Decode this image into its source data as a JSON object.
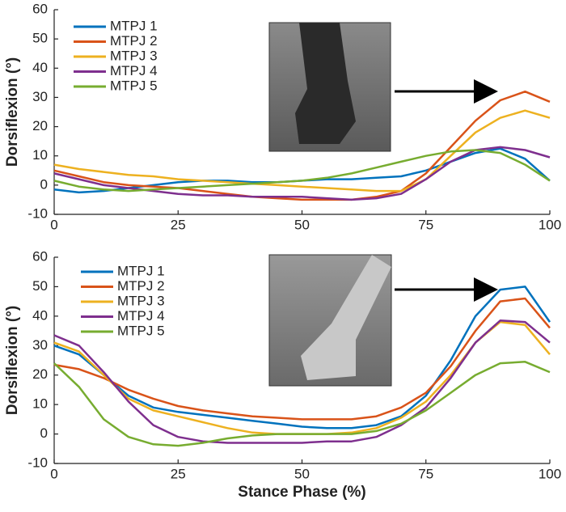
{
  "chart_data": [
    {
      "type": "line",
      "ylabel": "Dorsiflexion (°)",
      "x": [
        0,
        5,
        10,
        15,
        20,
        25,
        30,
        35,
        40,
        45,
        50,
        55,
        60,
        65,
        70,
        75,
        80,
        85,
        90,
        95,
        100
      ],
      "xlim": [
        0,
        100
      ],
      "xticks": [
        0,
        25,
        50,
        75,
        100
      ],
      "ylim": [
        -10,
        60
      ],
      "yticks": [
        -10,
        0,
        10,
        20,
        30,
        40,
        50,
        60
      ],
      "legend": "upper left",
      "series": [
        {
          "name": "MTPJ 1",
          "color": "#0072bd",
          "values": [
            -1.5,
            -2.5,
            -2,
            -1,
            0,
            1,
            1.5,
            1.5,
            1,
            1,
            1.5,
            2,
            2,
            2.5,
            3,
            5,
            8,
            11,
            12.5,
            9,
            1.5
          ]
        },
        {
          "name": "MTPJ 2",
          "color": "#d95319",
          "values": [
            5,
            3,
            1,
            0,
            -0.5,
            -1,
            -2,
            -3,
            -4,
            -4.5,
            -5,
            -5,
            -5,
            -4,
            -2,
            4,
            13,
            22,
            29,
            32,
            28.5
          ]
        },
        {
          "name": "MTPJ 3",
          "color": "#edb120",
          "values": [
            7,
            5.5,
            4.5,
            3.5,
            3,
            2,
            1.5,
            1,
            0.5,
            0,
            -0.5,
            -1,
            -1.5,
            -2,
            -2,
            2,
            10,
            18,
            23,
            25.5,
            23
          ]
        },
        {
          "name": "MTPJ 4",
          "color": "#7e2f8e",
          "values": [
            4,
            2,
            0,
            -1,
            -2,
            -3,
            -3.5,
            -3.5,
            -4,
            -4,
            -4,
            -4.5,
            -5,
            -4.5,
            -3,
            2,
            8,
            12,
            13,
            12,
            9.5
          ]
        },
        {
          "name": "MTPJ 5",
          "color": "#77ac30",
          "values": [
            1.5,
            -0.5,
            -1.5,
            -2,
            -1.5,
            -1,
            -0.5,
            0,
            0.5,
            1,
            1.5,
            2.5,
            4,
            6,
            8,
            10,
            11.5,
            12,
            11,
            7,
            1.5
          ]
        }
      ]
    },
    {
      "type": "line",
      "ylabel": "Dorsiflexion (°)",
      "xlabel": "Stance Phase (%)",
      "x": [
        0,
        5,
        10,
        15,
        20,
        25,
        30,
        35,
        40,
        45,
        50,
        55,
        60,
        65,
        70,
        75,
        80,
        85,
        90,
        95,
        100
      ],
      "xlim": [
        0,
        100
      ],
      "xticks": [
        0,
        25,
        50,
        75,
        100
      ],
      "ylim": [
        -10,
        60
      ],
      "yticks": [
        -10,
        0,
        10,
        20,
        30,
        40,
        50,
        60
      ],
      "legend": "upper left",
      "series": [
        {
          "name": "MTPJ 1",
          "color": "#0072bd",
          "values": [
            30,
            27,
            20,
            13,
            9,
            7.5,
            6.5,
            5.5,
            4.5,
            3.5,
            2.5,
            2,
            2,
            3,
            6,
            13,
            25,
            40,
            49,
            50,
            38
          ]
        },
        {
          "name": "MTPJ 2",
          "color": "#d95319",
          "values": [
            23.5,
            22,
            19,
            15,
            12,
            9.5,
            8,
            7,
            6,
            5.5,
            5,
            5,
            5,
            6,
            9,
            14,
            23,
            35,
            45,
            46,
            36
          ]
        },
        {
          "name": "MTPJ 3",
          "color": "#edb120",
          "values": [
            31,
            28,
            20,
            12,
            8,
            6,
            4,
            2,
            0.5,
            0,
            0,
            0,
            0.5,
            2,
            5.5,
            11,
            20,
            31,
            38,
            37,
            27
          ]
        },
        {
          "name": "MTPJ 4",
          "color": "#7e2f8e",
          "values": [
            33.5,
            30,
            21,
            11,
            3,
            -1,
            -2.5,
            -3,
            -3,
            -3,
            -3,
            -2.5,
            -2.5,
            -1,
            3,
            9,
            19,
            31,
            38.5,
            38,
            31
          ]
        },
        {
          "name": "MTPJ 5",
          "color": "#77ac30",
          "values": [
            24,
            16,
            5,
            -1,
            -3.5,
            -4,
            -3,
            -1.5,
            -0.5,
            0,
            0,
            0,
            0,
            1,
            3.5,
            8,
            14,
            20,
            24,
            24.5,
            21
          ]
        }
      ]
    }
  ]
}
